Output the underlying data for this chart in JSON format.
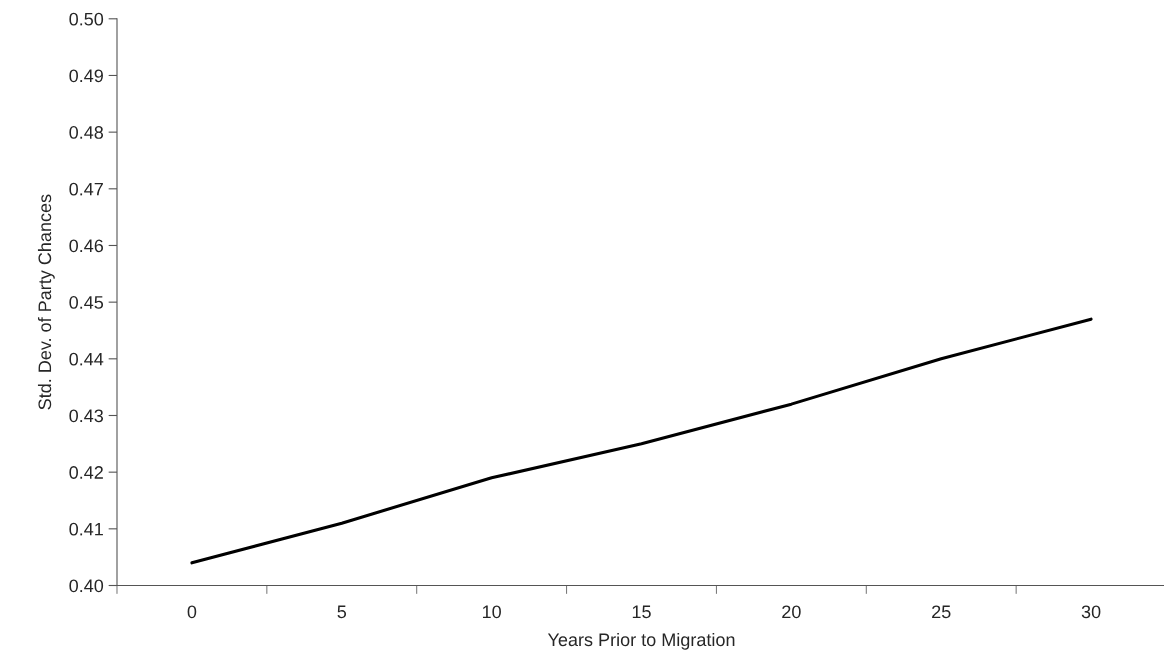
{
  "chart_data": {
    "type": "line",
    "xlabel": "Years Prior to Migration",
    "ylabel": "Std. Dev. of Party Chances",
    "categories": [
      "0",
      "5",
      "10",
      "15",
      "20",
      "25",
      "30"
    ],
    "series": [
      {
        "color": "#000000",
        "values": [
          0.404,
          0.411,
          0.419,
          0.425,
          0.432,
          0.44,
          0.447
        ]
      }
    ],
    "ylim": [
      0.4,
      0.5
    ],
    "yticks": [
      {
        "value": 0.4,
        "label": "0.40"
      },
      {
        "value": 0.41,
        "label": "0.41"
      },
      {
        "value": 0.42,
        "label": "0.42"
      },
      {
        "value": 0.43,
        "label": "0.43"
      },
      {
        "value": 0.44,
        "label": "0.44"
      },
      {
        "value": 0.45,
        "label": "0.45"
      },
      {
        "value": 0.46,
        "label": "0.46"
      },
      {
        "value": 0.47,
        "label": "0.47"
      },
      {
        "value": 0.48,
        "label": "0.48"
      },
      {
        "value": 0.49,
        "label": "0.49"
      },
      {
        "value": 0.5,
        "label": "0.50"
      }
    ],
    "grid": false,
    "marker": "none",
    "line_style": "solid"
  }
}
